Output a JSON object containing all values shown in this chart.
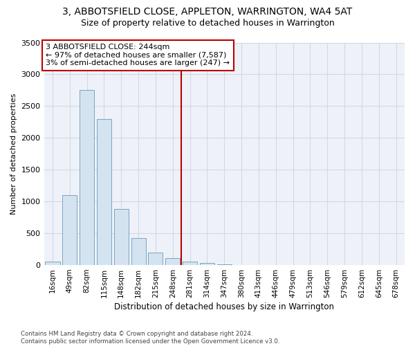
{
  "title": "3, ABBOTSFIELD CLOSE, APPLETON, WARRINGTON, WA4 5AT",
  "subtitle": "Size of property relative to detached houses in Warrington",
  "xlabel": "Distribution of detached houses by size in Warrington",
  "ylabel": "Number of detached properties",
  "bins": [
    "16sqm",
    "49sqm",
    "82sqm",
    "115sqm",
    "148sqm",
    "182sqm",
    "215sqm",
    "248sqm",
    "281sqm",
    "314sqm",
    "347sqm",
    "380sqm",
    "413sqm",
    "446sqm",
    "479sqm",
    "513sqm",
    "546sqm",
    "579sqm",
    "612sqm",
    "645sqm",
    "678sqm"
  ],
  "values": [
    55,
    1100,
    2750,
    2300,
    880,
    420,
    195,
    115,
    60,
    35,
    10,
    5,
    5,
    3,
    2,
    1,
    0,
    0,
    0,
    0,
    0
  ],
  "bar_color": "#d4e3f0",
  "bar_edge_color": "#6699bb",
  "vline_index": 7,
  "vline_color": "#bb0000",
  "annotation_line1": "3 ABBOTSFIELD CLOSE: 244sqm",
  "annotation_line2": "← 97% of detached houses are smaller (7,587)",
  "annotation_line3": "3% of semi-detached houses are larger (247) →",
  "annotation_box_color": "#ffffff",
  "annotation_box_edge_color": "#bb0000",
  "ylim": [
    0,
    3500
  ],
  "yticks": [
    0,
    500,
    1000,
    1500,
    2000,
    2500,
    3000,
    3500
  ],
  "bg_color": "#eef2f8",
  "grid_color": "#d0d8e8",
  "footnote": "Contains HM Land Registry data © Crown copyright and database right 2024.\nContains public sector information licensed under the Open Government Licence v3.0.",
  "title_fontsize": 10,
  "subtitle_fontsize": 9,
  "xlabel_fontsize": 8.5,
  "ylabel_fontsize": 8,
  "tick_fontsize": 8,
  "annot_fontsize": 8
}
